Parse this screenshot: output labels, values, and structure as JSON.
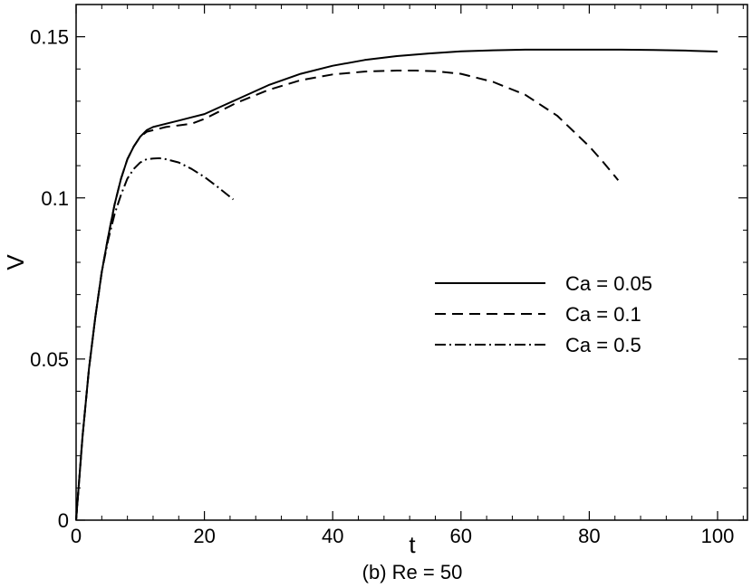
{
  "chart_data": {
    "type": "line",
    "title": "",
    "caption": "(b) Re = 50",
    "xlabel": "t",
    "ylabel": "V",
    "xlim": [
      0,
      104
    ],
    "ylim": [
      0,
      0.16
    ],
    "xticks": [
      0,
      20,
      40,
      60,
      80,
      100
    ],
    "xtick_labels": [
      "0",
      "20",
      "40",
      "60",
      "80",
      "100"
    ],
    "yticks": [
      0,
      0.05,
      0.1,
      0.15
    ],
    "ytick_labels": [
      "0",
      "0.05",
      "0.1",
      "0.15"
    ],
    "grid": false,
    "legend_position": "center-right",
    "series": [
      {
        "name": "Ca = 0.05",
        "style": "solid",
        "x": [
          0,
          1,
          2,
          3,
          4,
          5,
          6,
          7,
          8,
          9,
          10,
          11,
          12,
          14,
          16,
          18,
          20,
          25,
          30,
          35,
          40,
          45,
          50,
          55,
          60,
          65,
          70,
          75,
          80,
          85,
          90,
          95,
          100
        ],
        "y": [
          0,
          0.026,
          0.047,
          0.063,
          0.077,
          0.088,
          0.098,
          0.106,
          0.112,
          0.116,
          0.119,
          0.121,
          0.122,
          0.123,
          0.124,
          0.125,
          0.126,
          0.1305,
          0.135,
          0.1385,
          0.141,
          0.1428,
          0.144,
          0.1448,
          0.1455,
          0.1458,
          0.146,
          0.146,
          0.146,
          0.146,
          0.1459,
          0.1457,
          0.1454
        ]
      },
      {
        "name": "Ca = 0.1",
        "style": "dashed",
        "x": [
          0,
          1,
          2,
          3,
          4,
          5,
          6,
          7,
          8,
          9,
          10,
          11,
          12,
          14,
          16,
          18,
          20,
          25,
          30,
          35,
          40,
          45,
          50,
          53,
          56,
          60,
          65,
          70,
          75,
          80,
          82,
          84.5
        ],
        "y": [
          0,
          0.026,
          0.047,
          0.063,
          0.077,
          0.088,
          0.098,
          0.106,
          0.112,
          0.116,
          0.119,
          0.1205,
          0.121,
          0.122,
          0.1225,
          0.123,
          0.1245,
          0.1295,
          0.1335,
          0.1365,
          0.1383,
          0.1392,
          0.1395,
          0.1395,
          0.1393,
          0.1385,
          0.136,
          0.132,
          0.1255,
          0.116,
          0.1115,
          0.1055
        ]
      },
      {
        "name": "Ca = 0.5",
        "style": "dashdot",
        "x": [
          0,
          1,
          2,
          3,
          4,
          5,
          6,
          7,
          8,
          9,
          10,
          11,
          12,
          13,
          14,
          16,
          18,
          20,
          22,
          24.5
        ],
        "y": [
          0,
          0.026,
          0.047,
          0.063,
          0.077,
          0.087,
          0.095,
          0.101,
          0.106,
          0.109,
          0.111,
          0.112,
          0.1122,
          0.1123,
          0.112,
          0.111,
          0.109,
          0.1065,
          0.1035,
          0.0995
        ]
      }
    ]
  }
}
